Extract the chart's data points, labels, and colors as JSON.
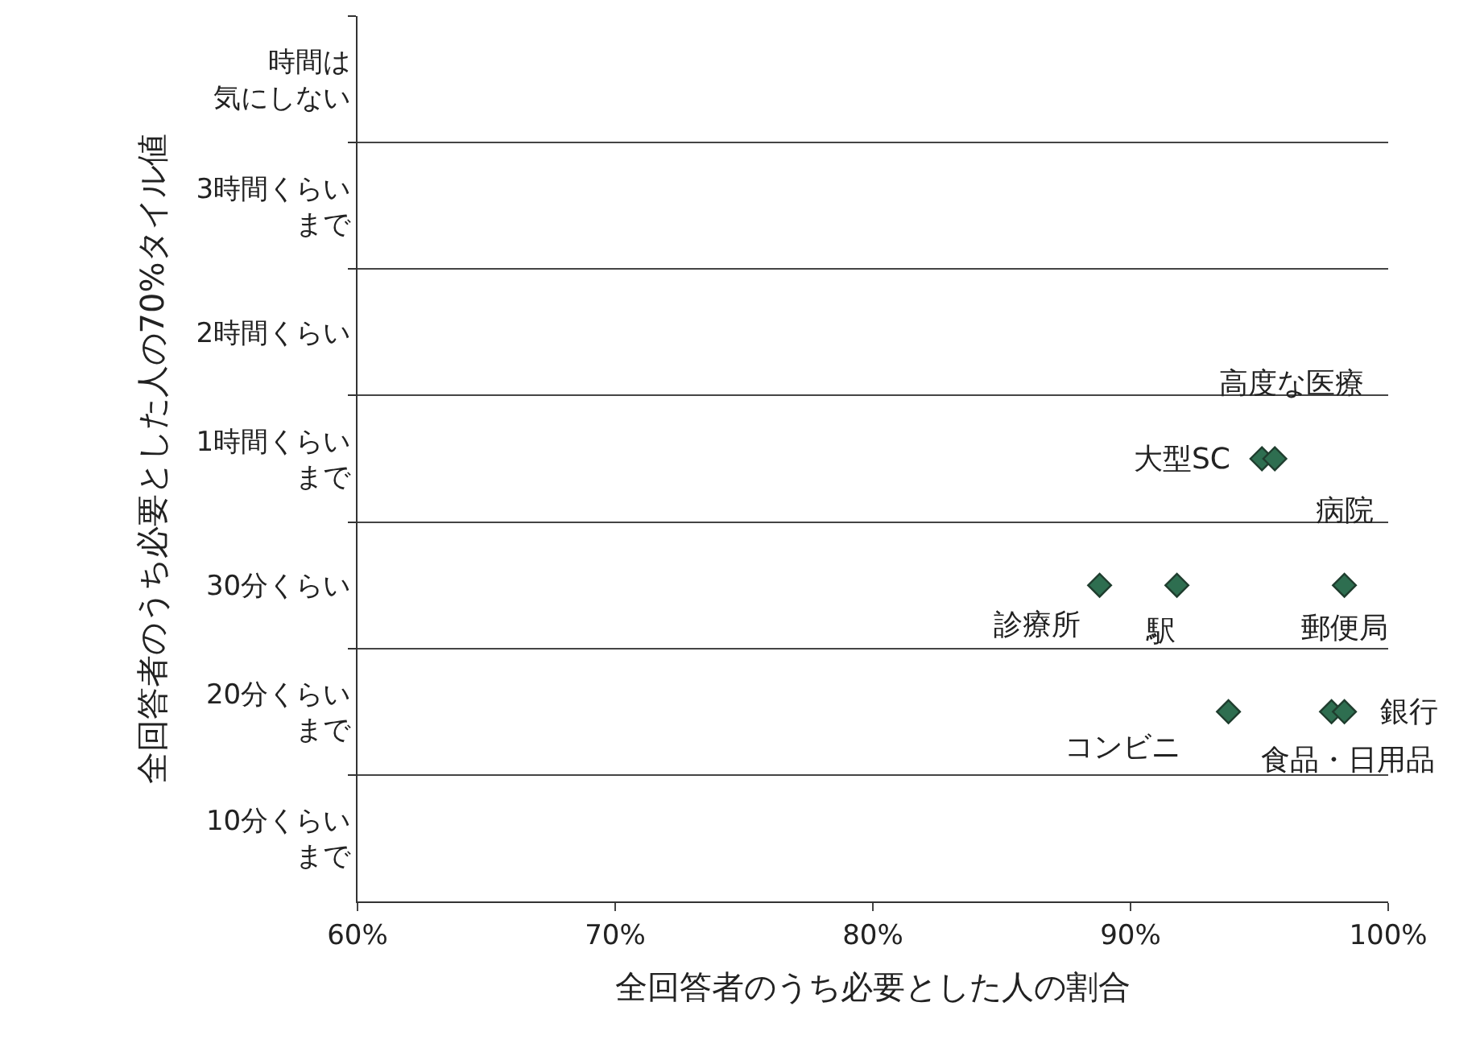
{
  "chart_data": {
    "type": "scatter",
    "orientation": "horizontal",
    "xlabel": "全回答者のうち必要とした人の割合",
    "ylabel": "全回答者のうち必要とした人の70%タイル値",
    "categories": [
      "時間は気にしない",
      "3時間くらいまで",
      "2時間くらい",
      "1時間くらいまで",
      "30分くらい",
      "20分くらいまで",
      "10分くらいまで"
    ],
    "series": [
      {
        "color": "#2e6e50",
        "values": [
          null,
          null,
          null,
          95.1,
          88.8,
          93.8,
          null
        ]
      },
      {
        "color": "#2e6e50",
        "values": [
          null,
          null,
          null,
          95.6,
          91.8,
          97.8,
          null
        ]
      },
      {
        "color": "#2e6e50",
        "values": [
          null,
          null,
          null,
          null,
          98.3,
          98.3,
          null
        ]
      }
    ],
    "marker": "diamond",
    "grid": "y",
    "xlim": [
      60,
      100
    ],
    "xticks": [
      {
        "value": 60,
        "label": "60%"
      },
      {
        "value": 70,
        "label": "70%"
      },
      {
        "value": 80,
        "label": "80%"
      },
      {
        "value": 90,
        "label": "90%"
      },
      {
        "value": 100,
        "label": "100%"
      }
    ],
    "annotations": [
      {
        "text": "大型SC",
        "x": 95.1,
        "y": "1時間くらいまで"
      },
      {
        "text": "高度な医療",
        "x": 95.6,
        "y": "1時間くらいまで"
      },
      {
        "text": "診療所",
        "x": 88.8,
        "y": "30分くらい"
      },
      {
        "text": "駅",
        "x": 91.8,
        "y": "30分くらい"
      },
      {
        "text": "病院",
        "x": 98.3,
        "y": "30分くらい"
      },
      {
        "text": "郵便局",
        "x": 98.3,
        "y": "30分くらい"
      },
      {
        "text": "コンビニ",
        "x": 93.8,
        "y": "20分くらいまで"
      },
      {
        "text": "銀行",
        "x": 98.3,
        "y": "20分くらいまで"
      },
      {
        "text": "食品・日用品",
        "x": 97.8,
        "y": "20分くらいまで"
      }
    ]
  }
}
